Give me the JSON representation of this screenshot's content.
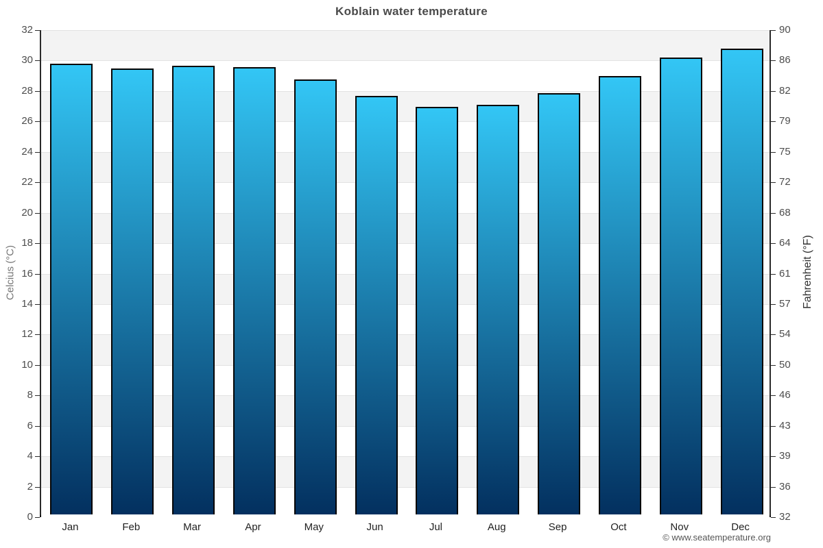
{
  "page": {
    "title": "Koblain water temperature",
    "footer": "© www.seatemperature.org"
  },
  "chart_data": {
    "type": "bar",
    "title": "Koblain water temperature",
    "categories": [
      "Jan",
      "Feb",
      "Mar",
      "Apr",
      "May",
      "Jun",
      "Jul",
      "Aug",
      "Sep",
      "Oct",
      "Nov",
      "Dec"
    ],
    "series": [
      {
        "name": "Water temperature (°C)",
        "values": [
          29.6,
          29.3,
          29.5,
          29.4,
          28.6,
          27.5,
          26.8,
          26.9,
          27.7,
          28.8,
          30.0,
          30.6
        ]
      }
    ],
    "ylabel_left": "Celcius (°C)",
    "ylabel_right": "Fahrenheit (°F)",
    "ylim": [
      0,
      32
    ],
    "yticks_celsius": [
      0,
      2,
      4,
      6,
      8,
      10,
      12,
      14,
      16,
      18,
      20,
      22,
      24,
      26,
      28,
      30,
      32
    ],
    "yticks_fahrenheit": [
      32,
      36,
      39,
      43,
      46,
      50,
      54,
      57,
      61,
      64,
      68,
      72,
      75,
      79,
      82,
      86,
      90
    ],
    "legend_position": "none",
    "grid": "horizontal-bands",
    "colors": {
      "bar_gradient_top": "#33c6f5",
      "bar_gradient_bottom": "#03305f",
      "bar_border": "#050505",
      "band_shaded": "#f3f3f3",
      "band_plain": "#ffffff",
      "gridline": "#e2e2e2",
      "axis_line": "#2a2a2a",
      "bottom_axis": "#000000",
      "title_text": "#4a4a4a",
      "tick_text": "#4d4d4d"
    }
  }
}
